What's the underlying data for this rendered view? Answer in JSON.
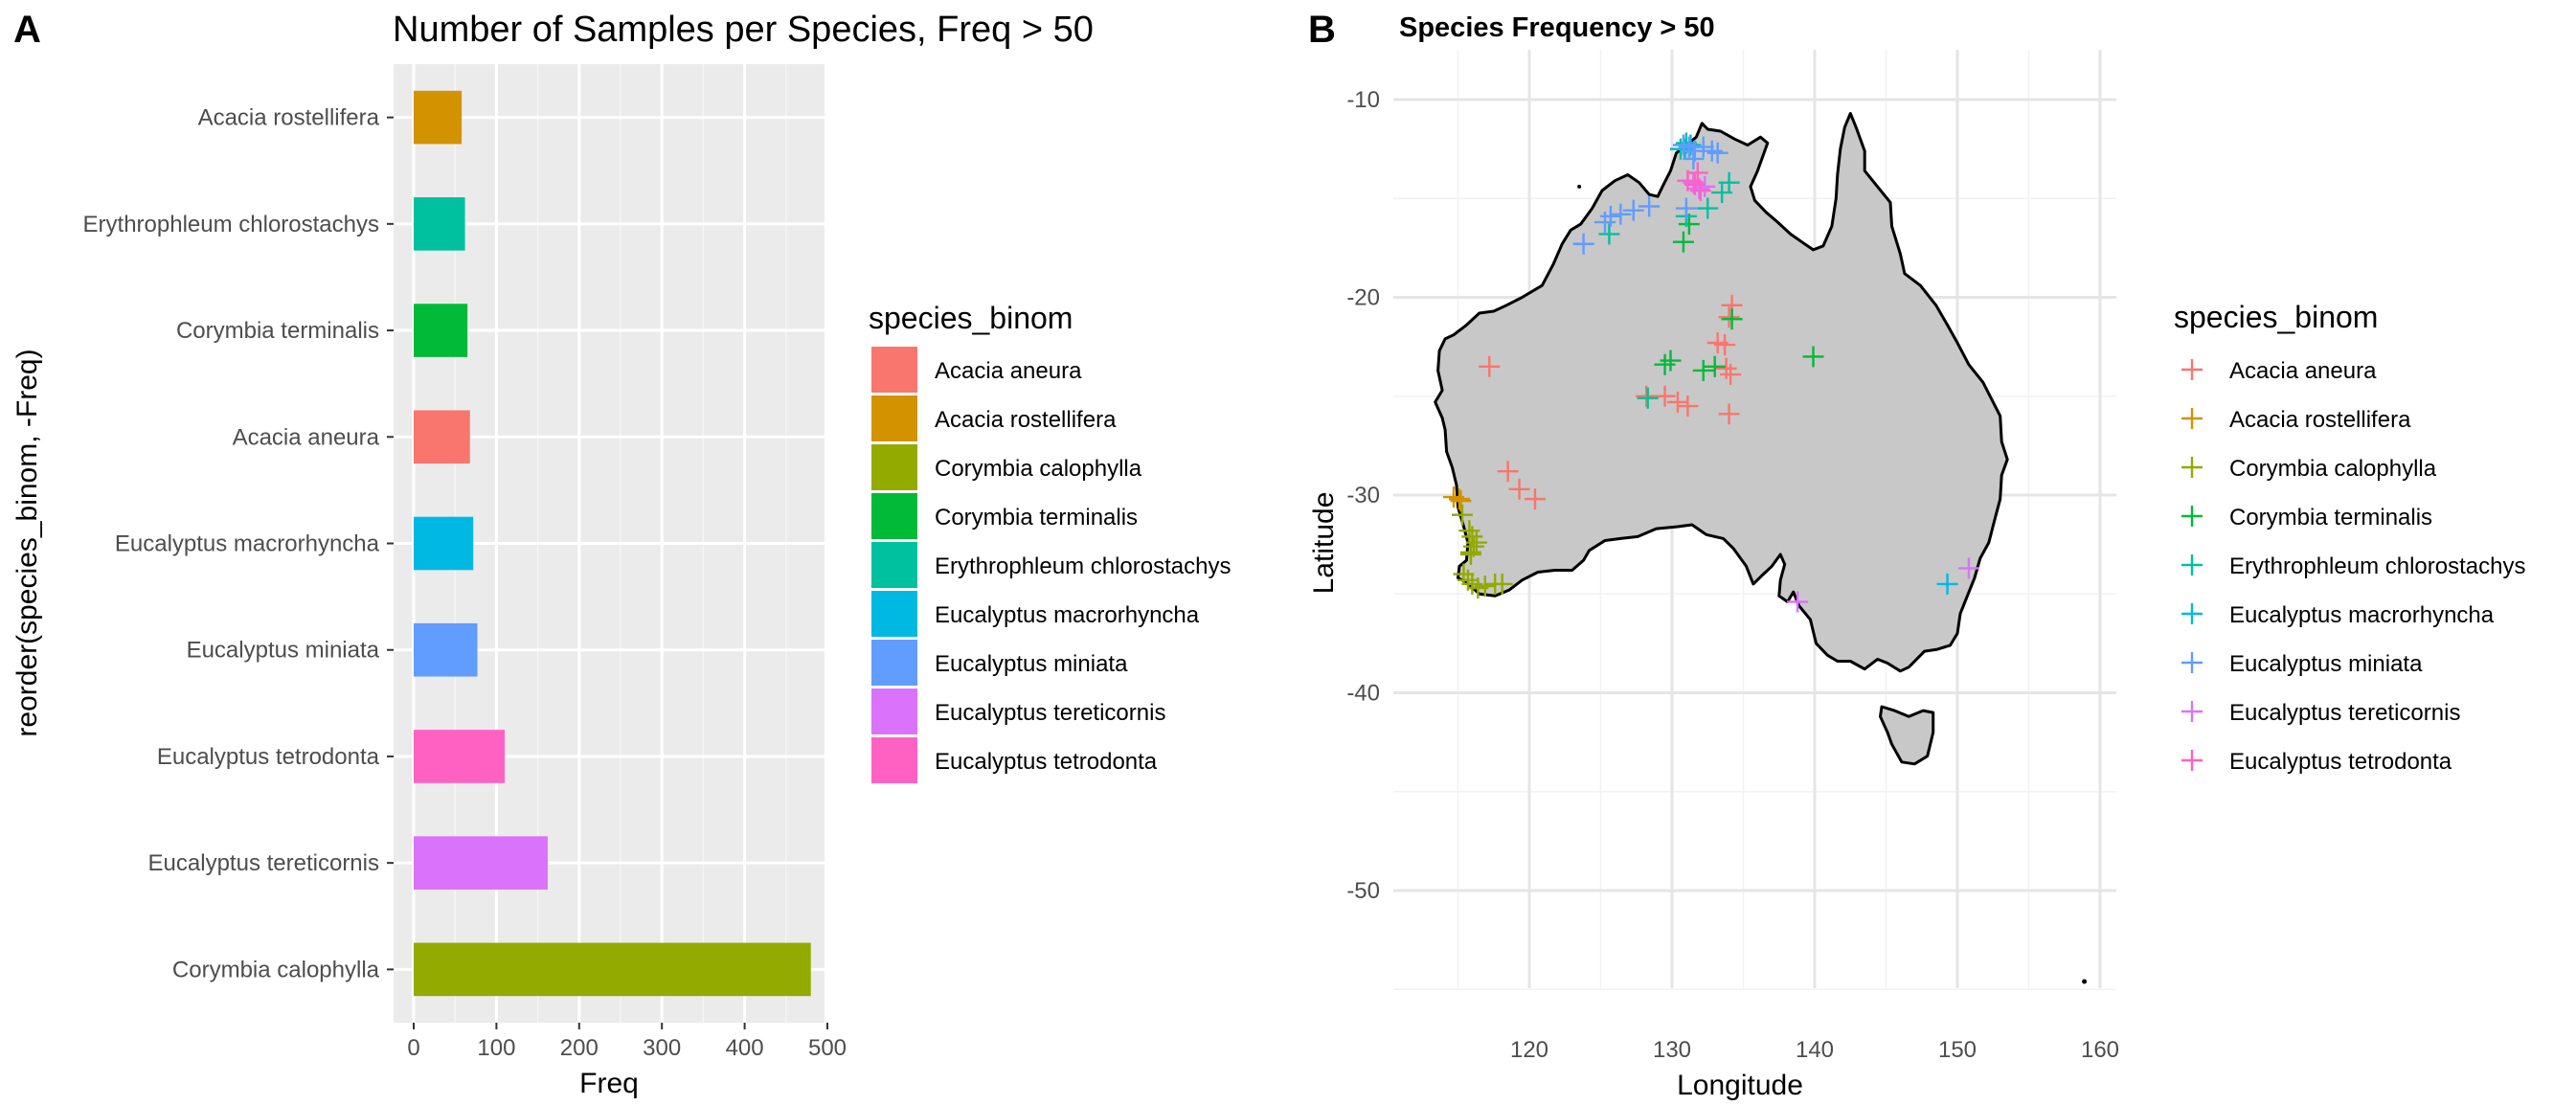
{
  "panels": {
    "a_letter": "A",
    "b_letter": "B"
  },
  "chart_data": [
    {
      "type": "bar",
      "orientation": "horizontal",
      "title": "Number of Samples per Species, Freq > 50",
      "xlabel": "Freq",
      "ylabel": "reorder(species_binom, -Freq)",
      "xlim": [
        0,
        500
      ],
      "xticks": [
        "0",
        "100",
        "200",
        "300",
        "400",
        "500"
      ],
      "grid": true,
      "legend_position": "right",
      "legend_title": "species_binom",
      "categories": [
        "Acacia rostellifera",
        "Erythrophleum chlorostachys",
        "Corymbia terminalis",
        "Acacia aneura",
        "Eucalyptus macrorhyncha",
        "Eucalyptus miniata",
        "Eucalyptus tetrodonta",
        "Eucalyptus tereticornis",
        "Corymbia calophylla"
      ],
      "values": [
        58,
        62,
        65,
        68,
        72,
        77,
        110,
        162,
        480
      ]
    },
    {
      "type": "scatter",
      "title": "Species Frequency > 50",
      "xlabel": "Longitude",
      "ylabel": "Latitude",
      "xlim": [
        110,
        161
      ],
      "ylim": [
        -55.5,
        -8.5
      ],
      "xticks": [
        120,
        130,
        140,
        150,
        160
      ],
      "yticks": [
        -10,
        -20,
        -30,
        -40,
        -50
      ],
      "marker": "+",
      "grid": true,
      "background_map": "Australia",
      "legend_position": "right",
      "legend_title": "species_binom",
      "series": [
        {
          "name": "Acacia aneura",
          "points": [
            [
              117.2,
              -23.5
            ],
            [
              118.5,
              -28.8
            ],
            [
              119.3,
              -29.7
            ],
            [
              120.4,
              -30.2
            ],
            [
              129.5,
              -25.0
            ],
            [
              130.4,
              -25.3
            ],
            [
              131.1,
              -25.5
            ],
            [
              133.2,
              -22.3
            ],
            [
              133.7,
              -22.4
            ],
            [
              134.0,
              -21.0
            ],
            [
              134.2,
              -20.4
            ],
            [
              133.8,
              -23.6
            ],
            [
              134.1,
              -23.9
            ],
            [
              134.0,
              -25.9
            ],
            [
              128.2,
              -25.0
            ]
          ]
        },
        {
          "name": "Acacia rostellifera",
          "points": [
            [
              114.7,
              -30.1
            ],
            [
              115.1,
              -30.2
            ],
            [
              115.2,
              -30.3
            ]
          ]
        },
        {
          "name": "Corymbia calophylla",
          "points": [
            [
              115.3,
              -31.0
            ],
            [
              115.8,
              -31.8
            ],
            [
              116.0,
              -32.1
            ],
            [
              116.1,
              -32.6
            ],
            [
              115.9,
              -32.9
            ],
            [
              116.3,
              -32.4
            ],
            [
              115.4,
              -34.0
            ],
            [
              115.7,
              -34.3
            ],
            [
              116.0,
              -34.5
            ],
            [
              116.4,
              -34.7
            ],
            [
              116.9,
              -34.6
            ],
            [
              117.6,
              -34.5
            ],
            [
              118.1,
              -34.5
            ],
            [
              128.3,
              -25.1
            ],
            [
              115.9,
              -33.0
            ]
          ]
        },
        {
          "name": "Corymbia terminalis",
          "points": [
            [
              129.5,
              -23.4
            ],
            [
              129.9,
              -23.2
            ],
            [
              132.2,
              -23.7
            ],
            [
              133.0,
              -23.5
            ],
            [
              134.2,
              -21.1
            ],
            [
              139.9,
              -23.0
            ],
            [
              131.2,
              -16.3
            ],
            [
              130.8,
              -17.2
            ]
          ]
        },
        {
          "name": "Erythrophleum chlorostachys",
          "points": [
            [
              125.6,
              -16.8
            ],
            [
              131.0,
              -15.9
            ],
            [
              132.5,
              -15.5
            ],
            [
              133.5,
              -14.7
            ],
            [
              134.0,
              -14.2
            ],
            [
              130.6,
              -12.5
            ],
            [
              131.0,
              -12.2
            ],
            [
              128.3,
              -25.1
            ]
          ]
        },
        {
          "name": "Eucalyptus macrorhyncha",
          "points": [
            [
              149.3,
              -34.5
            ],
            [
              130.9,
              -12.5
            ],
            [
              131.3,
              -12.3
            ]
          ]
        },
        {
          "name": "Eucalyptus miniata",
          "points": [
            [
              123.8,
              -17.3
            ],
            [
              125.3,
              -16.2
            ],
            [
              125.7,
              -15.9
            ],
            [
              126.4,
              -15.8
            ],
            [
              127.3,
              -15.6
            ],
            [
              128.4,
              -15.4
            ],
            [
              131.0,
              -15.5
            ],
            [
              130.8,
              -12.3
            ],
            [
              131.2,
              -12.4
            ],
            [
              131.6,
              -12.6
            ],
            [
              132.2,
              -12.4
            ],
            [
              132.8,
              -12.6
            ],
            [
              133.2,
              -12.7
            ],
            [
              131.5,
              -13.0
            ]
          ]
        },
        {
          "name": "Eucalyptus tereticornis",
          "points": [
            [
              150.8,
              -33.7
            ],
            [
              138.8,
              -35.4
            ],
            [
              131.5,
              -14.2
            ],
            [
              131.9,
              -14.5
            ],
            [
              132.3,
              -14.4
            ]
          ]
        },
        {
          "name": "Eucalyptus tetrodonta",
          "points": [
            [
              131.1,
              -14.1
            ],
            [
              131.6,
              -14.3
            ],
            [
              132.0,
              -14.6
            ],
            [
              131.8,
              -13.7
            ]
          ]
        }
      ]
    }
  ],
  "colors": {
    "Acacia aneura": "#F8766D",
    "Acacia rostellifera": "#D39200",
    "Corymbia calophylla": "#93AA00",
    "Corymbia terminalis": "#00BA38",
    "Erythrophleum chlorostachys": "#00C19F",
    "Eucalyptus macrorhyncha": "#00B9E3",
    "Eucalyptus miniata": "#619CFF",
    "Eucalyptus tereticornis": "#DB72FB",
    "Eucalyptus tetrodonta": "#FF61C3",
    "panel_bg": "#EBEBEB",
    "map_fill": "#C8C8C8",
    "gridline": "#E5E5E5"
  }
}
